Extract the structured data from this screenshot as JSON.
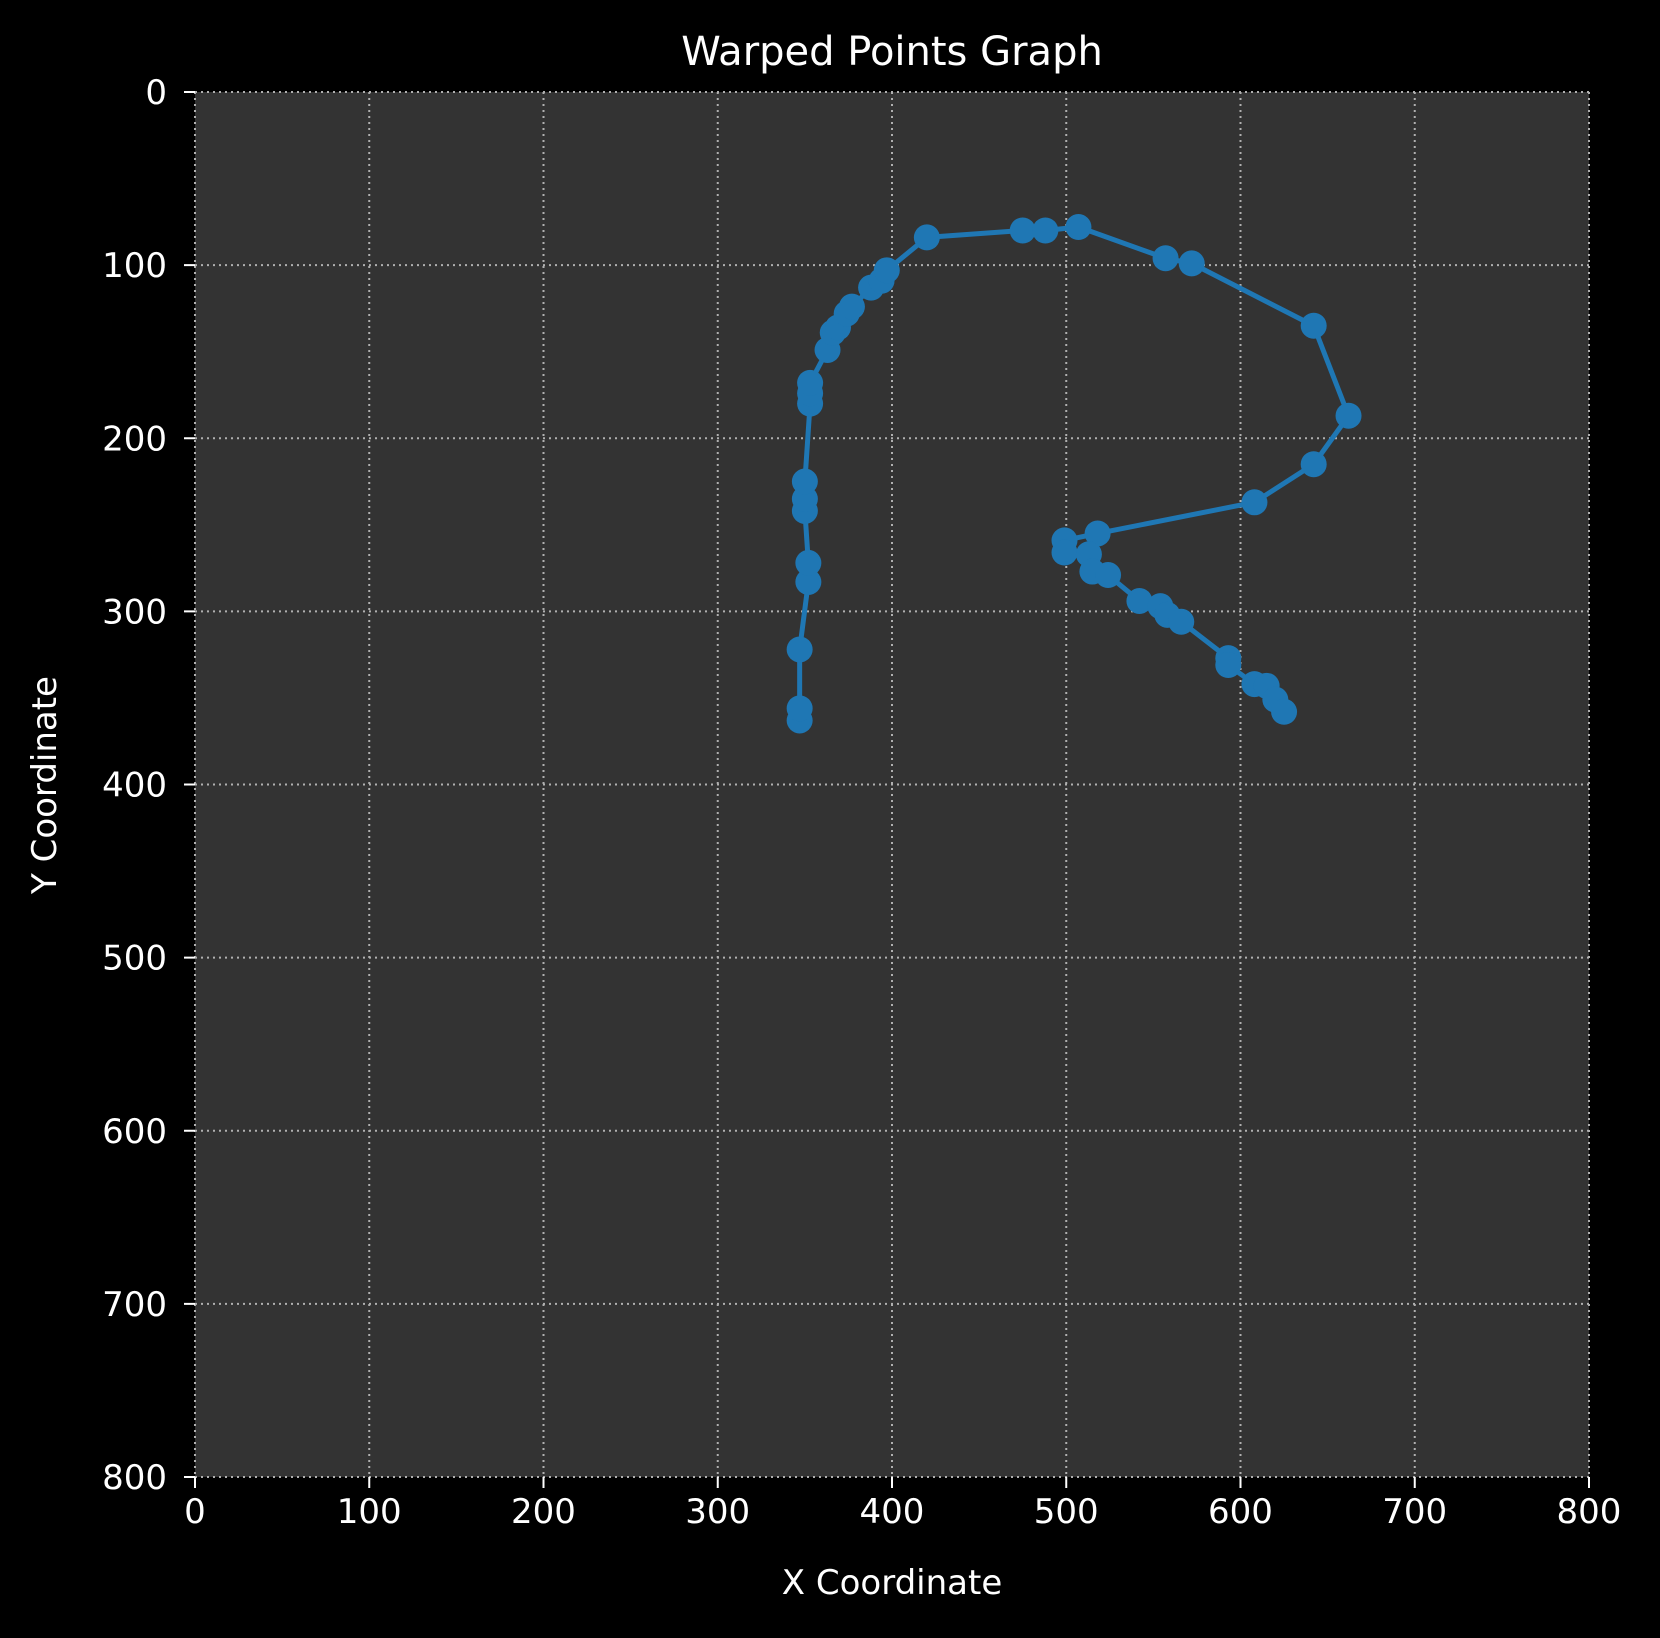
{
  "chart_data": {
    "type": "line",
    "title": "Warped Points Graph",
    "xlabel": "X Coordinate",
    "ylabel": "Y Coordinate",
    "xlim": [
      0,
      800
    ],
    "ylim": [
      800,
      0
    ],
    "y_inverted": true,
    "xticks": [
      "0",
      "100",
      "200",
      "300",
      "400",
      "500",
      "600",
      "700",
      "800"
    ],
    "yticks": [
      "0",
      "100",
      "200",
      "300",
      "400",
      "500",
      "600",
      "700",
      "800"
    ],
    "grid": true,
    "grid_style": "dotted",
    "markers": true,
    "colors": {
      "series": "#1f77b4",
      "plot_background": "#333333",
      "figure_background": "#000000",
      "text": "#ffffff",
      "grid": "#b0b0b0"
    },
    "series": [
      {
        "x": [
          347,
          347,
          347,
          352,
          352,
          350,
          350,
          350,
          353,
          353,
          353,
          363,
          366,
          369,
          374,
          377,
          388,
          394,
          397,
          420,
          475,
          488,
          507,
          557,
          572,
          642,
          662,
          642,
          608,
          518,
          499,
          499,
          513,
          515,
          524,
          542,
          554,
          558,
          566,
          593,
          593,
          608,
          615,
          620,
          625
        ],
        "y": [
          363,
          356,
          322,
          283,
          272,
          242,
          235,
          225,
          180,
          174,
          168,
          149,
          139,
          136,
          128,
          124,
          113,
          109,
          103,
          84,
          80,
          80,
          78,
          96,
          99,
          135,
          187,
          215,
          237,
          255,
          259,
          266,
          267,
          277,
          279,
          294,
          297,
          302,
          306,
          327,
          331,
          342,
          343,
          351,
          358
        ]
      }
    ]
  }
}
